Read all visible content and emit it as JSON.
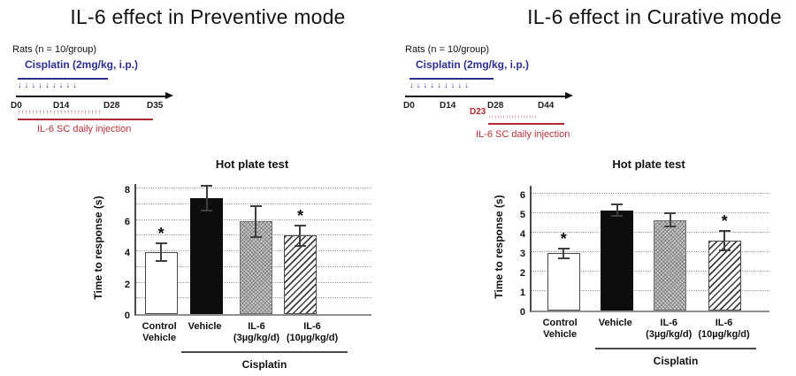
{
  "colors": {
    "accent_blue": "#2d2f8f",
    "accent_red": "#b02730",
    "bar_black": "#0e0e0e",
    "bar_gray": "#cacaca"
  },
  "panels": [
    {
      "title": "IL-6 effect in Preventive mode",
      "timeline": {
        "subjects": "Rats (n = 10/group)",
        "treatment": "Cisplatin (2mg/kg, i.p.)",
        "treatment_arrows": "↓↓↓↓↓↓↓↓↓",
        "days": [
          "D0",
          "D14",
          "D28",
          "D35"
        ],
        "il6_arrows": "↑↑↑↑↑↑↑↑↑↑↑↑↑↑↑↑↑↑↑↑↑↑↑↑",
        "il6_label": "IL-6  SC daily injection"
      }
    },
    {
      "title": "IL-6 effect in Curative mode",
      "timeline": {
        "subjects": "Rats (n = 10/group)",
        "treatment": "Cisplatin (2mg/kg, i.p.)",
        "treatment_arrows": "↓↓↓↓↓↓↓↓↓",
        "days": [
          "D0",
          "D14",
          "D28",
          "D44"
        ],
        "il6_start_label": "D23",
        "il6_arrows": "↑↑↑↑↑↑↑↑↑↑↑↑↑↑↑↑↑",
        "il6_label": "IL-6  SC daily injection"
      }
    }
  ],
  "chart_data": [
    {
      "type": "bar",
      "title": "Hot plate test",
      "ylabel": "Time to response (s)",
      "xlabel": "",
      "ylim": [
        0,
        8.4
      ],
      "yticks": [
        0,
        2,
        4,
        6,
        8
      ],
      "gridline_step": 1,
      "grid": "dotted",
      "legend": "none",
      "categories": [
        [
          "Control",
          "Vehicle"
        ],
        [
          "Vehicle",
          ""
        ],
        [
          "IL-6",
          "(3µg/kg/d)"
        ],
        [
          "IL-6",
          "(10µg/kg/d)"
        ]
      ],
      "values": [
        3.95,
        7.4,
        5.9,
        5.0
      ],
      "errors": [
        0.55,
        0.8,
        1.0,
        0.65
      ],
      "significant": [
        true,
        false,
        false,
        true
      ],
      "sig_symbol": "*",
      "patterns": [
        "p-white",
        "p-black",
        "p-check",
        "p-diag"
      ],
      "group_label": "Cisplatin",
      "group_span": [
        1,
        3
      ]
    },
    {
      "type": "bar",
      "title": "Hot plate test",
      "ylabel": "Time to response (s)",
      "xlabel": "",
      "ylim": [
        0,
        6.5
      ],
      "yticks": [
        0,
        1,
        2,
        3,
        4,
        5,
        6
      ],
      "gridline_step": 1,
      "grid": "dotted",
      "legend": "none",
      "categories": [
        [
          "Control",
          "Vehicle"
        ],
        [
          "Vehicle",
          ""
        ],
        [
          "IL-6",
          "(3µg/kg/d)"
        ],
        [
          "IL-6",
          "(10µg/kg/d)"
        ]
      ],
      "values": [
        2.95,
        5.15,
        4.65,
        3.6
      ],
      "errors": [
        0.25,
        0.3,
        0.35,
        0.5
      ],
      "significant": [
        true,
        false,
        false,
        true
      ],
      "sig_symbol": "*",
      "patterns": [
        "p-white",
        "p-black",
        "p-check",
        "p-diag"
      ],
      "group_label": "Cisplatin",
      "group_span": [
        1,
        3
      ]
    }
  ]
}
